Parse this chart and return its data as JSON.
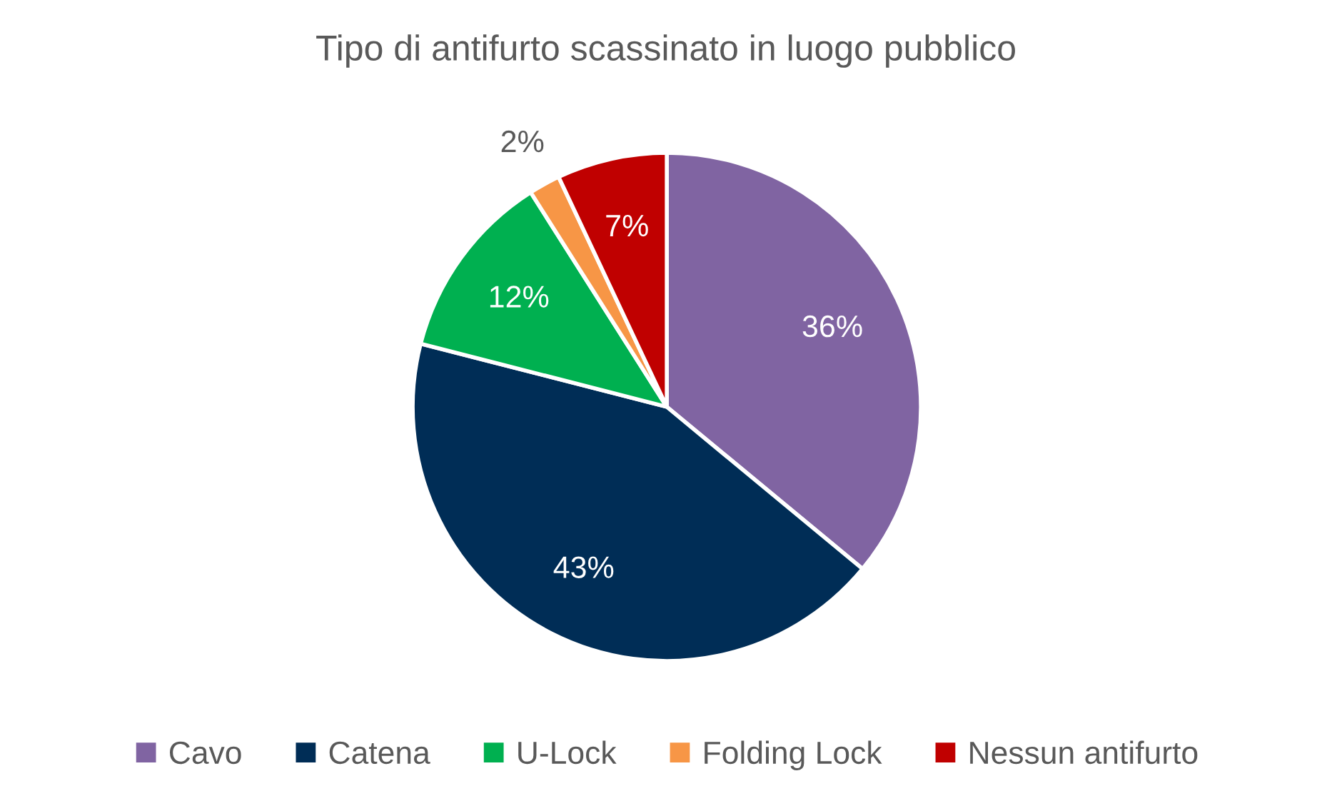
{
  "chart_data": {
    "type": "pie",
    "title": "Tipo di antifurto scassinato in luogo pubblico",
    "categories": [
      "Cavo",
      "Catena",
      "U-Lock",
      "Folding Lock",
      "Nessun antifurto"
    ],
    "values": [
      36,
      43,
      12,
      2,
      7
    ],
    "colors": [
      "#8064a2",
      "#002d56",
      "#00b050",
      "#f79646",
      "#c00000"
    ],
    "value_labels": [
      "36%",
      "43%",
      "12%",
      "2%",
      "7%"
    ],
    "legend": "bottom"
  }
}
